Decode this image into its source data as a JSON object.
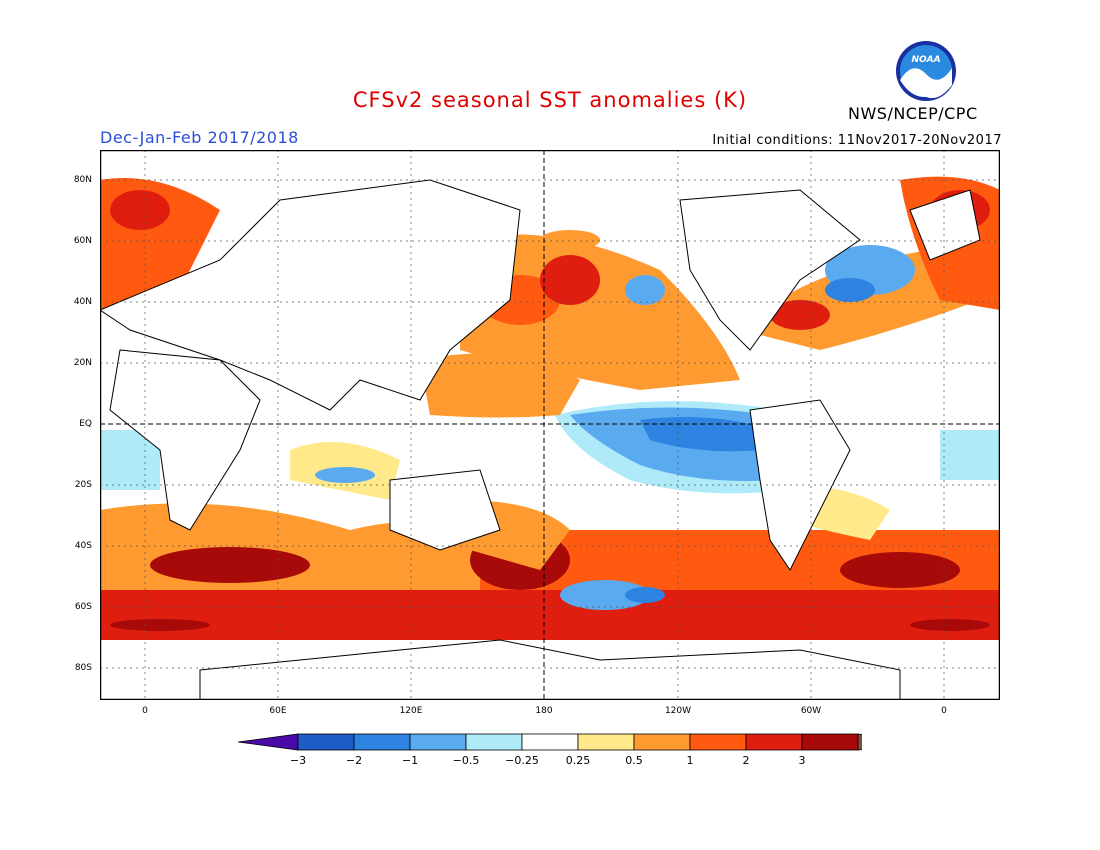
{
  "header": {
    "title": "CFSv2 seasonal SST anomalies (K)",
    "period": "Dec-Jan-Feb 2017/2018",
    "initial_conditions": "Initial conditions: 11Nov2017-20Nov2017",
    "org": "NWS/NCEP/CPC",
    "logo_text": "NOAA"
  },
  "axes": {
    "lat_labels": [
      "80N",
      "60N",
      "40N",
      "20N",
      "EQ",
      "20S",
      "40S",
      "60S",
      "80S"
    ],
    "lon_labels": [
      "0",
      "60E",
      "120E",
      "180",
      "120W",
      "60W",
      "0"
    ]
  },
  "colorbar": {
    "labels": [
      "-3",
      "-2",
      "-1",
      "-0.5",
      "-0.25",
      "0.25",
      "0.5",
      "1",
      "2",
      "3"
    ],
    "colors": [
      "#4a0aa8",
      "#1e5cc8",
      "#2e82e0",
      "#5aaaf0",
      "#aeeaf8",
      "#ffffff",
      "#ffe98a",
      "#ff9a30",
      "#ff5a10",
      "#e01e10",
      "#a80a0a",
      "#7a5040"
    ]
  }
}
